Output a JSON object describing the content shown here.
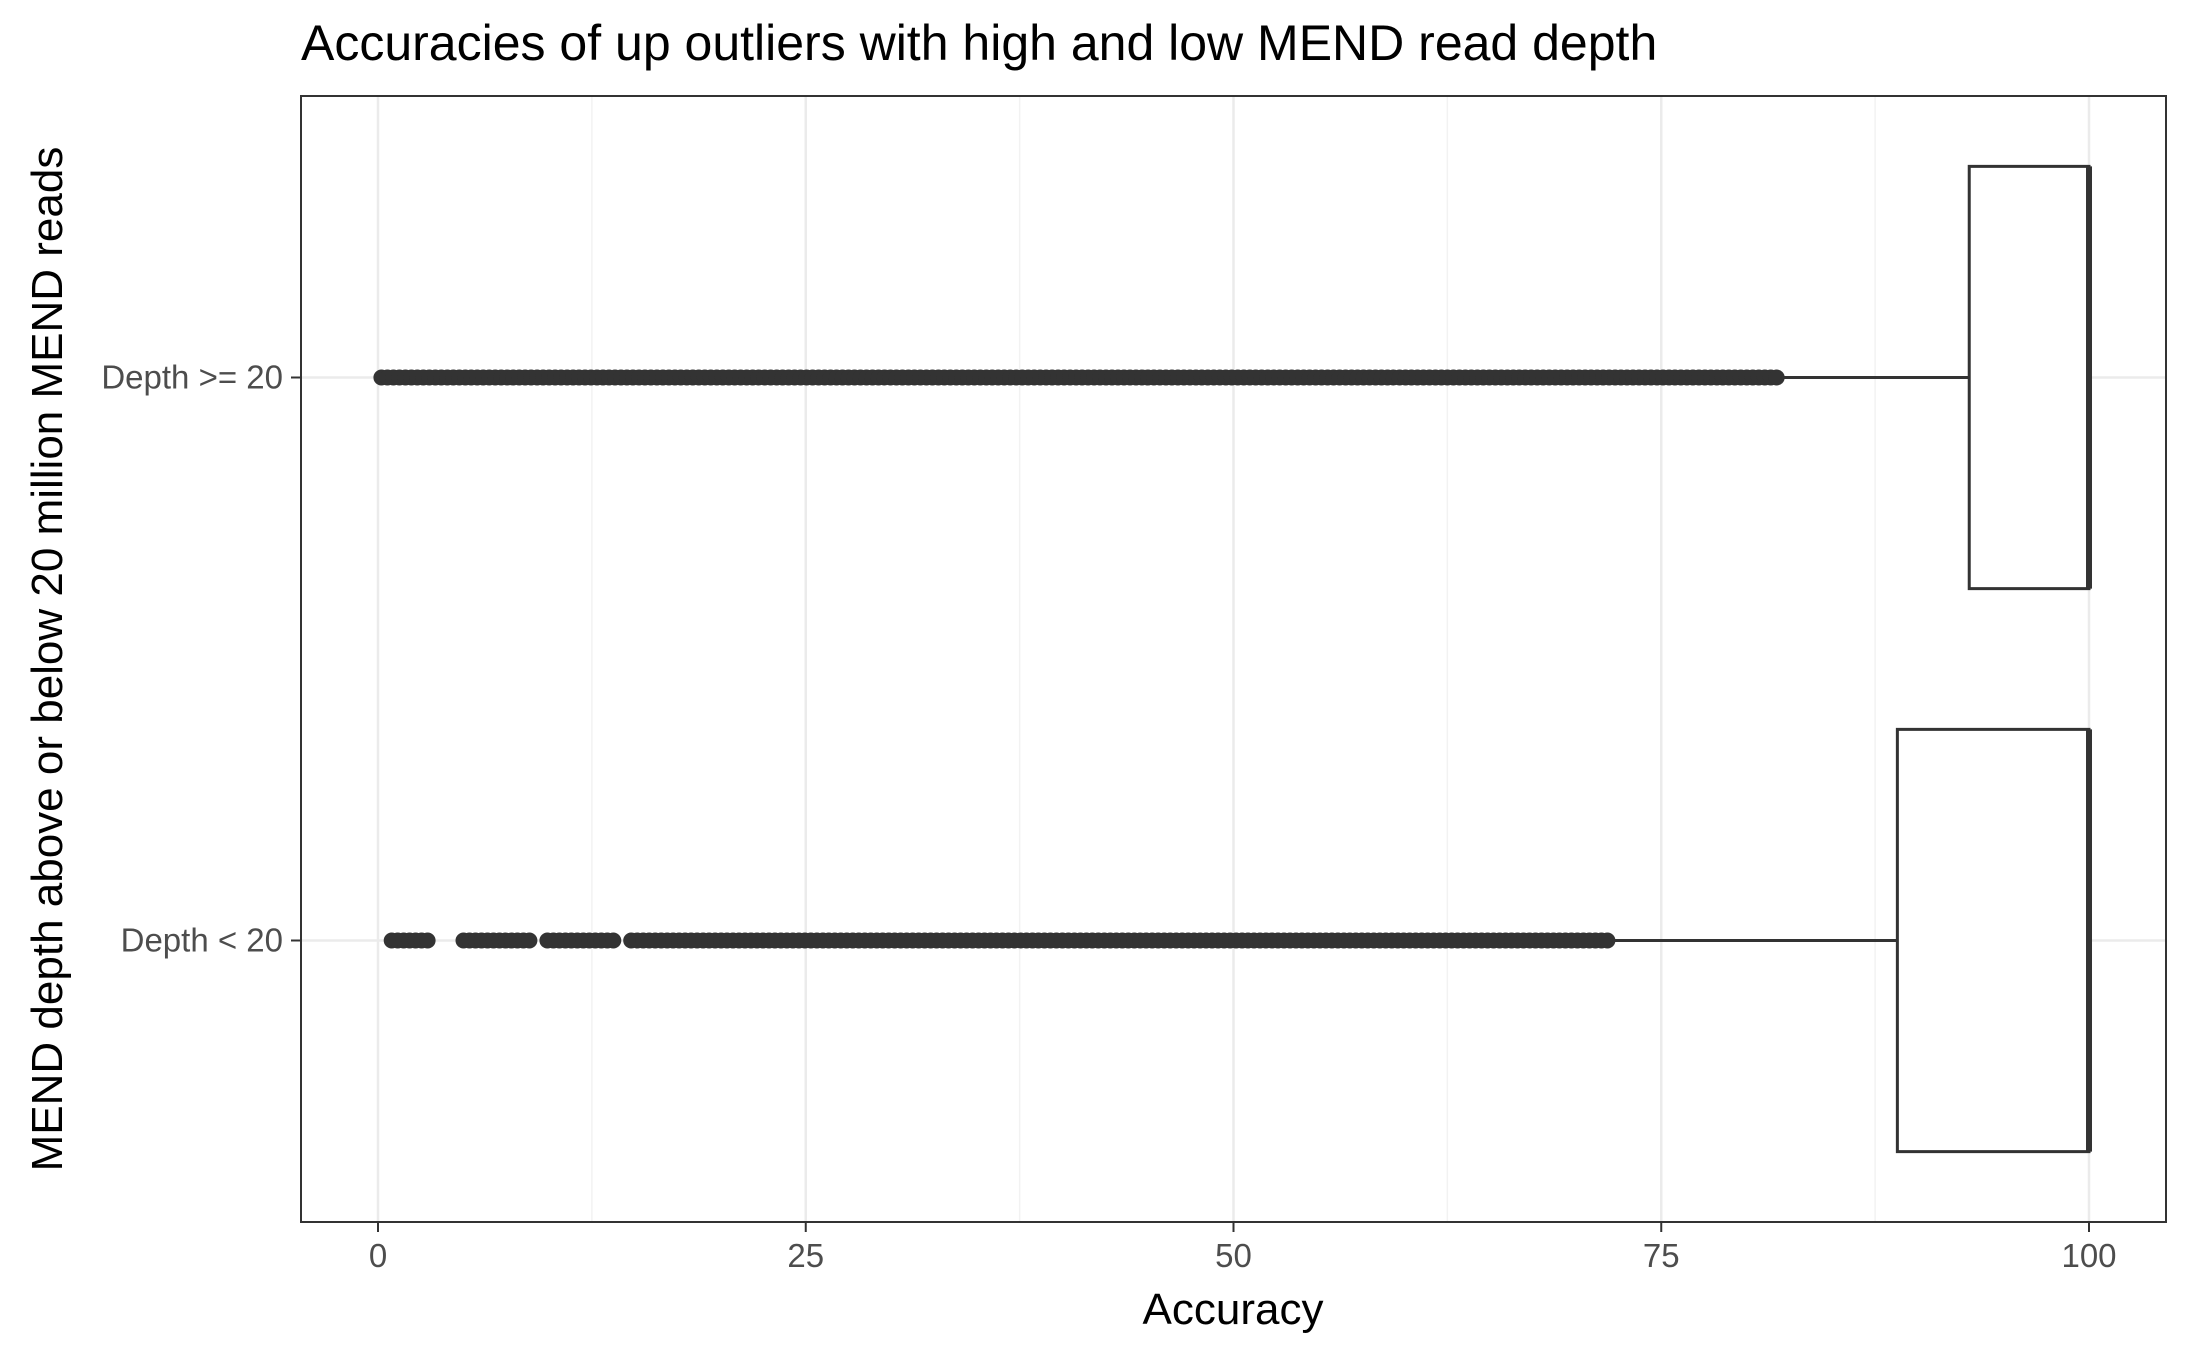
{
  "chart_data": {
    "type": "boxplot",
    "orientation": "horizontal",
    "title": "Accuracies of up outliers with high and low MEND read depth",
    "xlabel": "Accuracy",
    "ylabel": "MEND depth above or below 20 million MEND reads",
    "xlim": [
      -4.5,
      104.5
    ],
    "x_ticks": [
      0,
      25,
      50,
      75,
      100
    ],
    "x_tick_labels": [
      "0",
      "25",
      "50",
      "75",
      "100"
    ],
    "grid": true,
    "categories": [
      "Depth >= 20",
      "Depth < 20"
    ],
    "boxes": [
      {
        "category": "Depth >= 20",
        "whisker_low": 82,
        "q1": 93,
        "median": 100,
        "q3": 100,
        "whisker_high": 100,
        "outliers_range": [
          0.2,
          82
        ],
        "outlier_gaps": []
      },
      {
        "category": "Depth < 20",
        "whisker_low": 72,
        "q1": 88.8,
        "median": 100,
        "q3": 100,
        "whisker_high": 100,
        "outliers_range": [
          0.8,
          72
        ],
        "outlier_gaps": [
          [
            3,
            4.8
          ],
          [
            9,
            9.6
          ],
          [
            13.8,
            14.5
          ]
        ]
      }
    ],
    "colors": {
      "box_stroke": "#333333",
      "box_fill": "#ffffff",
      "outlier": "#333333",
      "grid_major": "#ebebeb",
      "grid_minor": "#f2f2f2",
      "panel_border": "#333333"
    }
  }
}
